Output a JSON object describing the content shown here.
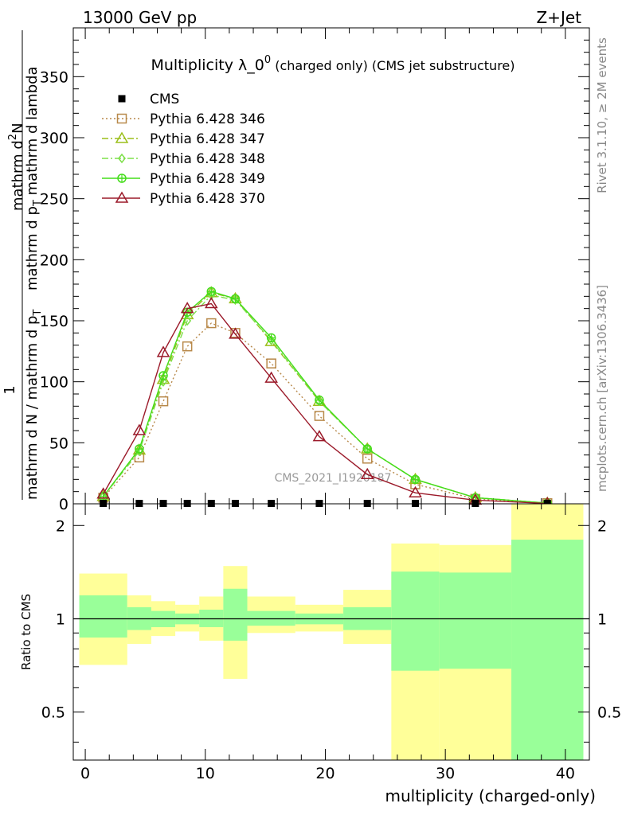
{
  "header": {
    "left": "13000 GeV pp",
    "right": "Z+Jet"
  },
  "title": {
    "main": "Multiplicity λ_0",
    "sup": "0",
    "sub": " (charged only) (CMS jet substructure)"
  },
  "side_labels": {
    "rivet": "Rivet 3.1.10, ≥ 2M events",
    "mcplots": "mcplots.cern.ch [arXiv:1306.3436]"
  },
  "watermark": "CMS_2021_I1920187",
  "ylabel_top": {
    "one": "1",
    "denominator": "mathrm d N / mathrm d p",
    "denominator_sub": "T",
    "numerator_a": "mathrm d",
    "numerator_sup": "2",
    "numerator_b": "N",
    "den2": "mathrm d p",
    "den2_sub": "T",
    "den2_tail": " mathrm d lambda"
  },
  "ylabel_bottom": "Ratio to CMS",
  "xlabel": "multiplicity (charged-only)",
  "legend": [
    {
      "label": "CMS",
      "color": "#000000",
      "marker": "square-filled",
      "dash": "none"
    },
    {
      "label": "Pythia 6.428 346",
      "color": "#b8894a",
      "marker": "square-open",
      "dash": "dotted"
    },
    {
      "label": "Pythia 6.428 347",
      "color": "#9bbf1a",
      "marker": "triangle-open",
      "dash": "dashdot"
    },
    {
      "label": "Pythia 6.428 348",
      "color": "#7ee04a",
      "marker": "diamond-open",
      "dash": "dashdot"
    },
    {
      "label": "Pythia 6.428 349",
      "color": "#44dd1a",
      "marker": "circle-plus",
      "dash": "solid"
    },
    {
      "label": "Pythia 6.428 370",
      "color": "#9b1a2a",
      "marker": "triangle-open",
      "dash": "solid"
    }
  ],
  "chart_data": {
    "type": "line",
    "top_panel": {
      "xlim": [
        -1,
        42
      ],
      "ylim": [
        0,
        390
      ],
      "yticks": [
        0,
        50,
        100,
        150,
        200,
        250,
        300,
        350
      ],
      "xticks": [
        0,
        10,
        20,
        30,
        40
      ],
      "cms_x": [
        1.5,
        4.5,
        6.5,
        8.5,
        10.5,
        12.5,
        15.5,
        19.5,
        23.5,
        27.5,
        32.5,
        38.5
      ],
      "cms_values": [
        0.3,
        0.3,
        0.3,
        0.3,
        0.3,
        0.3,
        0.3,
        0.3,
        0.3,
        0.3,
        0.3,
        0.3
      ],
      "series": [
        {
          "name": "Pythia 6.428 346",
          "x": [
            1.5,
            4.5,
            6.5,
            8.5,
            10.5,
            12.5,
            15.5,
            19.5,
            23.5,
            27.5,
            32.5,
            38.5
          ],
          "values": [
            5,
            38,
            84,
            129,
            148,
            140,
            115,
            72,
            37,
            16,
            4,
            0.5
          ]
        },
        {
          "name": "Pythia 6.428 347",
          "x": [
            1.5,
            4.5,
            6.5,
            8.5,
            10.5,
            12.5,
            15.5,
            19.5,
            23.5,
            27.5,
            32.5,
            38.5
          ],
          "values": [
            6,
            44,
            102,
            155,
            173,
            168,
            133,
            84,
            45,
            20,
            5,
            0.6
          ]
        },
        {
          "name": "Pythia 6.428 348",
          "x": [
            1.5,
            4.5,
            6.5,
            8.5,
            10.5,
            12.5,
            15.5,
            19.5,
            23.5,
            27.5,
            32.5,
            38.5
          ],
          "values": [
            6,
            43,
            100,
            150,
            171,
            167,
            134,
            84,
            45,
            20,
            5,
            0.6
          ]
        },
        {
          "name": "Pythia 6.428 349",
          "x": [
            1.5,
            4.5,
            6.5,
            8.5,
            10.5,
            12.5,
            15.5,
            19.5,
            23.5,
            27.5,
            32.5,
            38.5
          ],
          "values": [
            6,
            45,
            105,
            157,
            174,
            168,
            136,
            85,
            45,
            20,
            5,
            0.6
          ]
        },
        {
          "name": "Pythia 6.428 370",
          "x": [
            1.5,
            4.5,
            6.5,
            8.5,
            10.5,
            12.5,
            15.5,
            19.5,
            23.5,
            27.5,
            32.5,
            38.5
          ],
          "values": [
            8,
            60,
            124,
            160,
            164,
            139,
            103,
            55,
            24,
            9,
            3,
            0.3
          ]
        }
      ]
    },
    "bottom_panel": {
      "ylabel": "Ratio to CMS",
      "ylim": [
        0.35,
        2.35
      ],
      "yticks": [
        0.5,
        1,
        2
      ],
      "reference": 1,
      "bins": [
        {
          "lo": -0.5,
          "hi": 3.5,
          "green": [
            0.87,
            1.19
          ],
          "yellow": [
            0.71,
            1.4
          ]
        },
        {
          "lo": 3.5,
          "hi": 5.5,
          "green": [
            0.92,
            1.09
          ],
          "yellow": [
            0.83,
            1.19
          ]
        },
        {
          "lo": 5.5,
          "hi": 7.5,
          "green": [
            0.94,
            1.06
          ],
          "yellow": [
            0.88,
            1.14
          ]
        },
        {
          "lo": 7.5,
          "hi": 9.5,
          "green": [
            0.96,
            1.04
          ],
          "yellow": [
            0.91,
            1.11
          ]
        },
        {
          "lo": 9.5,
          "hi": 11.5,
          "green": [
            0.94,
            1.07
          ],
          "yellow": [
            0.85,
            1.18
          ]
        },
        {
          "lo": 11.5,
          "hi": 13.5,
          "green": [
            0.85,
            1.25
          ],
          "yellow": [
            0.64,
            1.48
          ]
        },
        {
          "lo": 13.5,
          "hi": 17.5,
          "green": [
            0.95,
            1.06
          ],
          "yellow": [
            0.9,
            1.18
          ]
        },
        {
          "lo": 17.5,
          "hi": 21.5,
          "green": [
            0.96,
            1.04
          ],
          "yellow": [
            0.91,
            1.11
          ]
        },
        {
          "lo": 21.5,
          "hi": 25.5,
          "green": [
            0.92,
            1.09
          ],
          "yellow": [
            0.83,
            1.24
          ]
        },
        {
          "lo": 25.5,
          "hi": 29.5,
          "green": [
            0.68,
            1.42
          ],
          "yellow": [
            0.35,
            1.75
          ]
        },
        {
          "lo": 29.5,
          "hi": 35.5,
          "green": [
            0.69,
            1.41
          ],
          "yellow": [
            0.35,
            1.73
          ]
        },
        {
          "lo": 35.5,
          "hi": 41.5,
          "green": [
            0.35,
            1.8
          ],
          "yellow": [
            0.35,
            2.35
          ]
        }
      ]
    }
  }
}
